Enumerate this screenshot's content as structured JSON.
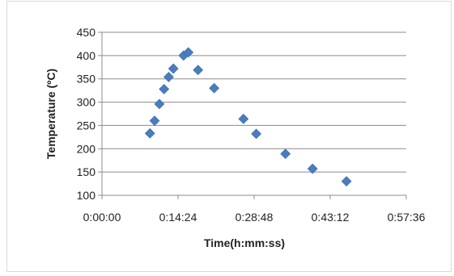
{
  "chart_data": {
    "type": "scatter",
    "xlabel": "Time(h:mm:ss)",
    "ylabel": "Temperature (ºC)",
    "x_axis_kind": "time",
    "xlim": [
      "0:00:00",
      "0:57:36"
    ],
    "ylim": [
      100,
      450
    ],
    "x_ticks": [
      "0:00:00",
      "0:14:24",
      "0:28:48",
      "0:43:12",
      "0:57:36"
    ],
    "y_ticks": [
      100,
      150,
      200,
      250,
      300,
      350,
      400,
      450
    ],
    "grid": "horizontal",
    "marker": "diamond",
    "series": [
      {
        "color": "#4a7cc0",
        "points": [
          {
            "x": "0:09:05",
            "y": 233
          },
          {
            "x": "0:09:58",
            "y": 260
          },
          {
            "x": "0:10:52",
            "y": 296
          },
          {
            "x": "0:11:45",
            "y": 328
          },
          {
            "x": "0:12:38",
            "y": 354
          },
          {
            "x": "0:13:31",
            "y": 372
          },
          {
            "x": "0:15:27",
            "y": 400
          },
          {
            "x": "0:16:21",
            "y": 407
          },
          {
            "x": "0:18:11",
            "y": 369
          },
          {
            "x": "0:21:14",
            "y": 330
          },
          {
            "x": "0:26:47",
            "y": 264
          },
          {
            "x": "0:29:12",
            "y": 232
          },
          {
            "x": "0:34:44",
            "y": 189
          },
          {
            "x": "0:39:52",
            "y": 157
          },
          {
            "x": "0:46:17",
            "y": 130
          }
        ]
      }
    ]
  }
}
